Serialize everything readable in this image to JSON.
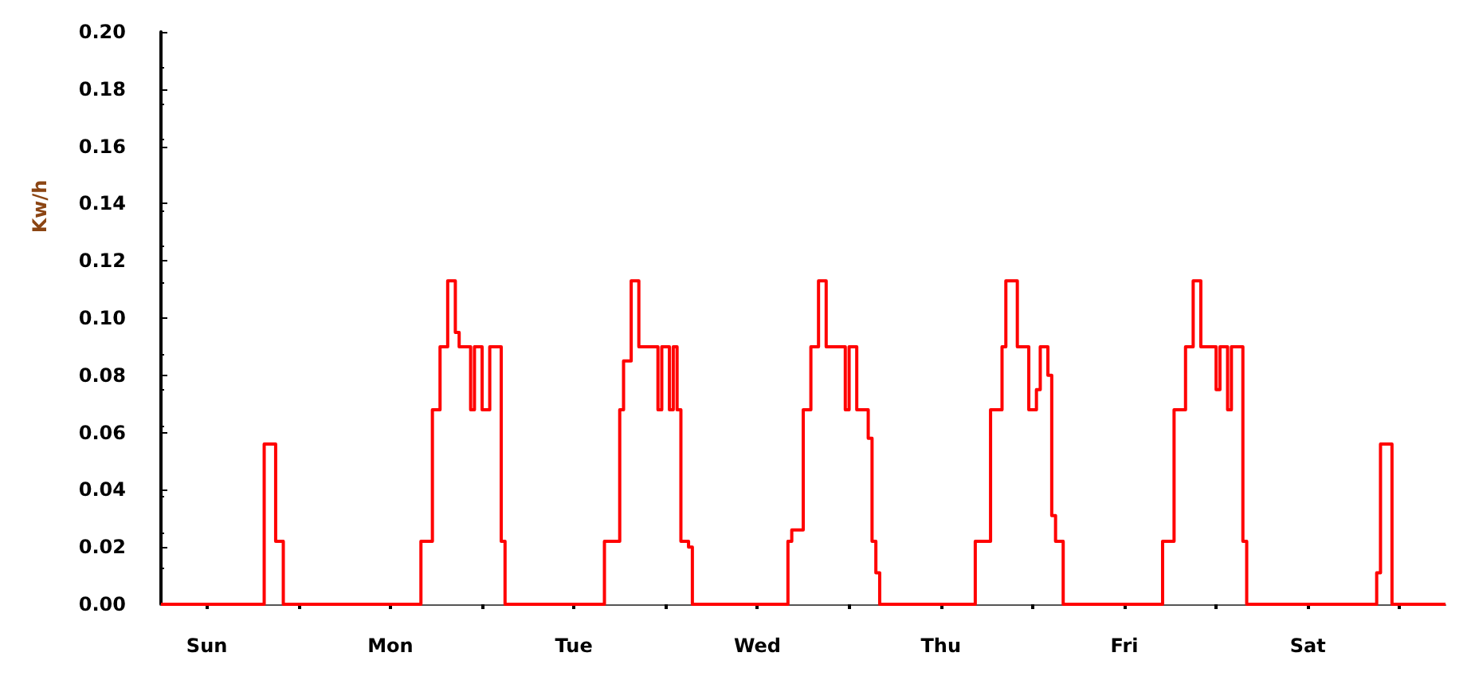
{
  "chart_data": {
    "type": "step",
    "ylabel": "Kw/h",
    "ylim": [
      0,
      0.2
    ],
    "yticks": [
      {
        "value": 0,
        "label": "0.00"
      },
      {
        "value": 0.02,
        "label": "0.02"
      },
      {
        "value": 0.04,
        "label": "0.04"
      },
      {
        "value": 0.06,
        "label": "0.06"
      },
      {
        "value": 0.08,
        "label": "0.08"
      },
      {
        "value": 0.1,
        "label": "0.10"
      },
      {
        "value": 0.12,
        "label": "0.12"
      },
      {
        "value": 0.14,
        "label": "0.14"
      },
      {
        "value": 0.16,
        "label": "0.16"
      },
      {
        "value": 0.18,
        "label": "0.18"
      },
      {
        "value": 0.2,
        "label": "0.20"
      }
    ],
    "grid": false,
    "marker": "none",
    "line_style": "solid",
    "categories": [
      null,
      null,
      null,
      null,
      null,
      null,
      null,
      null,
      null,
      null,
      null,
      null,
      "Sun",
      null,
      null,
      null,
      null,
      null,
      null,
      null,
      null,
      null,
      null,
      null,
      null,
      null,
      null,
      null,
      null,
      null,
      null,
      null,
      null,
      null,
      null,
      null,
      null,
      null,
      null,
      null,
      null,
      null,
      null,
      null,
      null,
      null,
      null,
      null,
      null,
      null,
      null,
      null,
      null,
      null,
      null,
      null,
      null,
      null,
      null,
      null,
      "Mon",
      null,
      null,
      null,
      null,
      null,
      null,
      null,
      null,
      null,
      null,
      null,
      null,
      null,
      null,
      null,
      null,
      null,
      null,
      null,
      null,
      null,
      null,
      null,
      null,
      null,
      null,
      null,
      null,
      null,
      null,
      null,
      null,
      null,
      null,
      null,
      null,
      null,
      null,
      null,
      null,
      null,
      null,
      null,
      null,
      null,
      null,
      null,
      "Tue",
      null,
      null,
      null,
      null,
      null,
      null,
      null,
      null,
      null,
      null,
      null,
      null,
      null,
      null,
      null,
      null,
      null,
      null,
      null,
      null,
      null,
      null,
      null,
      null,
      null,
      null,
      null,
      null,
      null,
      null,
      null,
      null,
      null,
      null,
      null,
      null,
      null,
      null,
      null,
      null,
      null,
      null,
      null,
      null,
      null,
      null,
      null,
      "Wed",
      null,
      null,
      null,
      null,
      null,
      null,
      null,
      null,
      null,
      null,
      null,
      null,
      null,
      null,
      null,
      null,
      null,
      null,
      null,
      null,
      null,
      null,
      null,
      null,
      null,
      null,
      null,
      null,
      null,
      null,
      null,
      null,
      null,
      null,
      null,
      null,
      null,
      null,
      null,
      null,
      null,
      null,
      null,
      null,
      null,
      null,
      null,
      "Thu",
      null,
      null,
      null,
      null,
      null,
      null,
      null,
      null,
      null,
      null,
      null,
      null,
      null,
      null,
      null,
      null,
      null,
      null,
      null,
      null,
      null,
      null,
      null,
      null,
      null,
      null,
      null,
      null,
      null,
      null,
      null,
      null,
      null,
      null,
      null,
      null,
      null,
      null,
      null,
      null,
      null,
      null,
      null,
      null,
      null,
      null,
      null,
      "Fri",
      null,
      null,
      null,
      null,
      null,
      null,
      null,
      null,
      null,
      null,
      null,
      null,
      null,
      null,
      null,
      null,
      null,
      null,
      null,
      null,
      null,
      null,
      null,
      null,
      null,
      null,
      null,
      null,
      null,
      null,
      null,
      null,
      null,
      null,
      null,
      null,
      null,
      null,
      null,
      null,
      null,
      null,
      null,
      null,
      null,
      null,
      null,
      "Sat",
      null,
      null,
      null,
      null,
      null,
      null,
      null,
      null,
      null,
      null,
      null,
      null,
      null,
      null,
      null,
      null,
      null,
      null,
      null,
      null,
      null,
      null,
      null,
      null,
      null,
      null,
      null,
      null,
      null,
      null,
      null,
      null,
      null,
      null,
      null,
      null
    ],
    "series": [
      {
        "color": "#ff0000",
        "values": [
          0,
          0,
          0,
          0,
          0,
          0,
          0,
          0,
          0,
          0,
          0,
          0,
          0,
          0,
          0,
          0,
          0,
          0,
          0,
          0,
          0,
          0,
          0,
          0,
          0,
          0,
          0,
          0.056,
          0.056,
          0.056,
          0.022,
          0.022,
          0,
          0,
          0,
          0,
          0,
          0,
          0,
          0,
          0,
          0,
          0,
          0,
          0,
          0,
          0,
          0,
          0,
          0,
          0,
          0,
          0,
          0,
          0,
          0,
          0,
          0,
          0,
          0,
          0,
          0,
          0,
          0,
          0,
          0,
          0,
          0,
          0.022,
          0.022,
          0.022,
          0.068,
          0.068,
          0.09,
          0.09,
          0.113,
          0.113,
          0.095,
          0.09,
          0.09,
          0.09,
          0.068,
          0.09,
          0.09,
          0.068,
          0.068,
          0.09,
          0.09,
          0.09,
          0.022,
          0,
          0,
          0,
          0,
          0,
          0,
          0,
          0,
          0,
          0,
          0,
          0,
          0,
          0,
          0,
          0,
          0,
          0,
          0,
          0,
          0,
          0,
          0,
          0,
          0,
          0,
          0.022,
          0.022,
          0.022,
          0.022,
          0.068,
          0.085,
          0.085,
          0.113,
          0.113,
          0.09,
          0.09,
          0.09,
          0.09,
          0.09,
          0.068,
          0.09,
          0.09,
          0.068,
          0.09,
          0.068,
          0.022,
          0.022,
          0.02,
          0,
          0,
          0,
          0,
          0,
          0,
          0,
          0,
          0,
          0,
          0,
          0,
          0,
          0,
          0,
          0,
          0,
          0,
          0,
          0,
          0,
          0,
          0,
          0,
          0,
          0.022,
          0.026,
          0.026,
          0.026,
          0.068,
          0.068,
          0.09,
          0.09,
          0.113,
          0.113,
          0.09,
          0.09,
          0.09,
          0.09,
          0.09,
          0.068,
          0.09,
          0.09,
          0.068,
          0.068,
          0.068,
          0.058,
          0.022,
          0.011,
          0,
          0,
          0,
          0,
          0,
          0,
          0,
          0,
          0,
          0,
          0,
          0,
          0,
          0,
          0,
          0,
          0,
          0,
          0,
          0,
          0,
          0,
          0,
          0,
          0,
          0.022,
          0.022,
          0.022,
          0.022,
          0.068,
          0.068,
          0.068,
          0.09,
          0.113,
          0.113,
          0.113,
          0.09,
          0.09,
          0.09,
          0.068,
          0.068,
          0.075,
          0.09,
          0.09,
          0.08,
          0.031,
          0.022,
          0.022,
          0,
          0,
          0,
          0,
          0,
          0,
          0,
          0,
          0,
          0,
          0,
          0,
          0,
          0,
          0,
          0,
          0,
          0,
          0,
          0,
          0,
          0,
          0,
          0,
          0,
          0,
          0.022,
          0.022,
          0.022,
          0.068,
          0.068,
          0.068,
          0.09,
          0.09,
          0.113,
          0.113,
          0.09,
          0.09,
          0.09,
          0.09,
          0.075,
          0.09,
          0.09,
          0.068,
          0.09,
          0.09,
          0.09,
          0.022,
          0,
          0,
          0,
          0,
          0,
          0,
          0,
          0,
          0,
          0,
          0,
          0,
          0,
          0,
          0,
          0,
          0,
          0,
          0,
          0,
          0,
          0,
          0,
          0,
          0,
          0,
          0,
          0,
          0,
          0,
          0,
          0,
          0,
          0,
          0.011,
          0.056,
          0.056,
          0.056,
          0,
          0,
          0,
          0,
          0,
          0,
          0,
          0,
          0,
          0,
          0,
          0,
          0,
          0,
          0
        ]
      }
    ]
  }
}
